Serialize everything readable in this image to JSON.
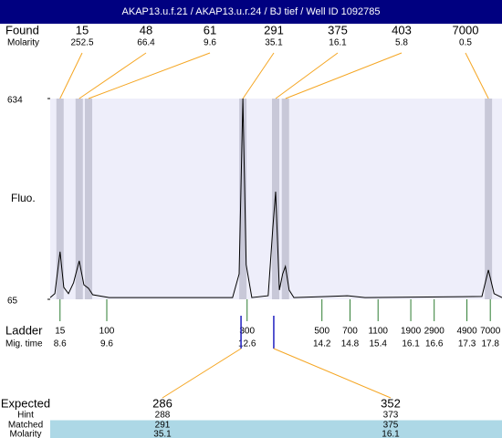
{
  "header": {
    "title": "AKAP13.u.f.21 / AKAP13.u.r.24 / BJ tief / Well ID 1092785"
  },
  "chart_data": {
    "type": "electropherogram",
    "y_label": "Fluo.",
    "ylim": [
      65,
      634
    ],
    "yticks": [
      65,
      634
    ],
    "xlim": [
      8.39,
      18.05
    ],
    "colors": {
      "band": "#c8c8d8",
      "plot": "#eeeefa",
      "found_line": "#f5a623",
      "ladder_tick": "#2e7d32",
      "expected_marker": "#2020c0",
      "highlight": "#add8e6",
      "trace": "#000000"
    },
    "found": {
      "label": "Found",
      "sublabel": "Molarity",
      "peaks": [
        {
          "size": 15,
          "molarity": 252.5,
          "time": 8.6
        },
        {
          "size": 48,
          "molarity": 66.4,
          "time": 9.01
        },
        {
          "size": 61,
          "molarity": 9.6,
          "time": 9.21
        },
        {
          "size": 291,
          "molarity": 35.1,
          "time": 12.51
        },
        {
          "size": 375,
          "molarity": 16.1,
          "time": 13.21
        },
        {
          "size": 403,
          "molarity": 5.8,
          "time": 13.42
        },
        {
          "size": 7000,
          "molarity": 0.5,
          "time": 17.76
        }
      ]
    },
    "ladder": {
      "label": "Ladder",
      "sublabel": "Mig. time",
      "sizes": [
        15,
        100,
        300,
        500,
        700,
        1100,
        1900,
        2900,
        4900,
        7000
      ],
      "times": [
        8.6,
        9.6,
        12.6,
        14.2,
        14.8,
        15.4,
        16.1,
        16.6,
        17.3,
        17.8
      ]
    },
    "trace": {
      "x": [
        8.39,
        8.49,
        8.6,
        8.68,
        8.78,
        8.89,
        9.01,
        9.11,
        9.21,
        9.3,
        9.65,
        12.29,
        12.43,
        12.51,
        12.58,
        12.7,
        13.05,
        13.15,
        13.21,
        13.29,
        13.36,
        13.42,
        13.5,
        13.6,
        14.35,
        14.74,
        15.12,
        17.62,
        17.76,
        17.88,
        18.05
      ],
      "y": [
        70,
        81,
        200,
        99,
        81,
        112,
        174,
        106,
        96,
        78,
        70,
        70,
        137,
        634,
        163,
        70,
        75,
        267,
        370,
        91,
        137,
        158,
        91,
        70,
        73,
        75,
        70,
        73,
        148,
        81,
        70
      ]
    },
    "expected": {
      "labels": [
        "Expected",
        "Hint",
        "Matched",
        "Molarity"
      ],
      "columns": [
        {
          "time": 12.47,
          "values": [
            286,
            288,
            291,
            35.1
          ]
        },
        {
          "time": 13.17,
          "values": [
            352,
            373,
            375,
            16.1
          ]
        }
      ]
    }
  }
}
